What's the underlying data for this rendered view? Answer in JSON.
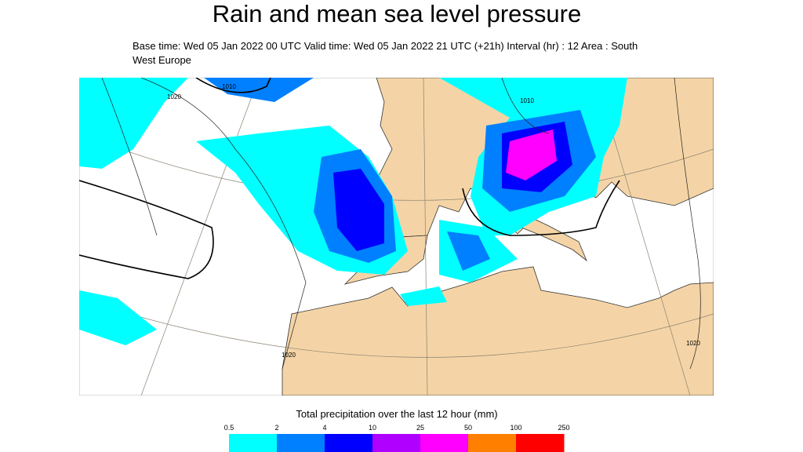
{
  "header": {
    "title": "Rain and mean sea level pressure",
    "subtitle": "Base time: Wed 05 Jan 2022 00 UTC Valid time: Wed 05 Jan 2022 21 UTC (+21h) Interval (hr) : 12 Area : South West Europe"
  },
  "map": {
    "isobar_labels": [
      "1010",
      "1020",
      "1010",
      "1020",
      "1020"
    ]
  },
  "legend": {
    "title": "Total precipitation over the last 12 hour (mm)",
    "ticks": [
      0.5,
      2,
      4,
      10,
      25,
      50,
      100,
      250
    ],
    "colors": [
      "#00ffff",
      "#0080ff",
      "#0000ff",
      "#b000ff",
      "#ff00ff",
      "#ff8000",
      "#ff0000"
    ]
  }
}
